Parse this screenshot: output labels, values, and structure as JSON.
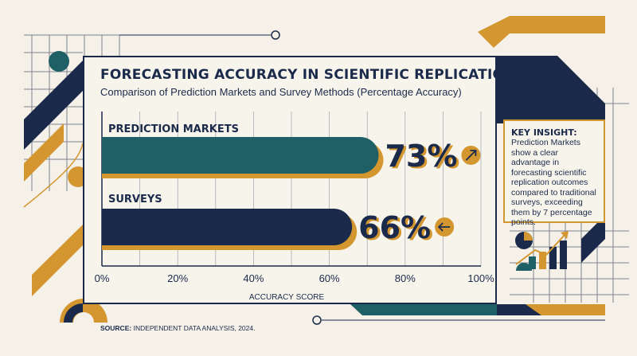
{
  "title": "FORECASTING ACCURACY IN SCIENTIFIC REPLICATION",
  "subtitle": "Comparison of Prediction Markets and Survey Methods (Percentage Accuracy)",
  "insight": {
    "title": "KEY INSIGHT:",
    "body": "Prediction Markets show a clear advantage in forecasting scientific replication outcomes compared to traditional surveys, exceeding them by 7 percentage points."
  },
  "source": {
    "label": "SOURCE:",
    "text": "INDEPENDENT DATA ANALYSIS, 2024."
  },
  "colors": {
    "navy": "#1b2a4a",
    "teal": "#1f5f66",
    "mustard": "#d4962f",
    "cream": "#f5f1e8"
  },
  "chart_data": {
    "type": "bar",
    "orientation": "horizontal",
    "categories": [
      "PREDICTION MARKETS",
      "SURVEYS"
    ],
    "values": [
      73,
      66
    ],
    "value_labels": [
      "73%",
      "66%"
    ],
    "trend_icons": [
      "arrow-up-right-icon",
      "arrow-left-icon"
    ],
    "bar_colors": [
      "#1f5f66",
      "#1b2a4a"
    ],
    "xlabel": "ACCURACY SCORE",
    "ylabel": "",
    "xlim": [
      0,
      100
    ],
    "ticks": [
      0,
      20,
      40,
      60,
      80,
      100
    ],
    "tick_labels": [
      "0%",
      "20%",
      "40%",
      "60%",
      "80%",
      "100%"
    ],
    "grid": true
  }
}
